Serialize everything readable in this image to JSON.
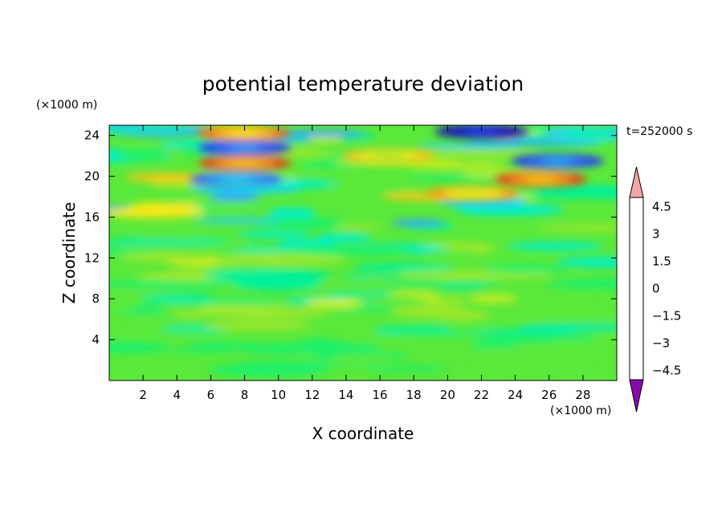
{
  "chart_data": {
    "type": "heatmap",
    "title": "potential temperature deviation",
    "xlabel": "X coordinate",
    "ylabel": "Z coordinate",
    "x_unit": "(×1000 m)",
    "y_unit": "(×1000 m)",
    "time_label": "t=252000 s",
    "xlim": [
      0,
      30
    ],
    "ylim": [
      0,
      25
    ],
    "xticks": [
      2,
      4,
      6,
      8,
      10,
      12,
      14,
      16,
      18,
      20,
      22,
      24,
      26,
      28
    ],
    "yticks": [
      4,
      8,
      12,
      16,
      20,
      24
    ],
    "colorbar": {
      "levels": [
        -5,
        -4.5,
        -4,
        -3.5,
        -3,
        -2.5,
        -2,
        -1.5,
        -1,
        -0.5,
        0,
        0.5,
        1,
        1.5,
        2,
        2.5,
        3,
        3.5,
        4,
        4.5,
        5
      ],
      "tick_labels": [
        "4.5",
        "3",
        "1.5",
        "0",
        "−1.5",
        "−3",
        "−4.5"
      ],
      "tick_values": [
        4.5,
        3,
        1.5,
        0,
        -1.5,
        -3,
        -4.5
      ],
      "colors": [
        "#3b0a8c",
        "#1c0aa8",
        "#1a1ad0",
        "#2a3cf0",
        "#2f6ef8",
        "#2ea4f8",
        "#22d0f0",
        "#00f0c8",
        "#00f09a",
        "#1ef06a",
        "#5ae83a",
        "#9ee82a",
        "#d6ee1e",
        "#f4e818",
        "#fbc414",
        "#fb9a12",
        "#f76a12",
        "#ee3c14",
        "#dc1c12",
        "#c01010"
      ],
      "over_color": "#f4a6a6",
      "under_color": "#8a0aa8"
    },
    "features": [
      {
        "x": 22,
        "z": 24.4,
        "value": -4.5
      },
      {
        "x": 8,
        "z": 22.8,
        "value": -3.5
      },
      {
        "x": 8,
        "z": 21.3,
        "value": 3.5
      },
      {
        "x": 7.5,
        "z": 19.7,
        "value": -3
      },
      {
        "x": 26.5,
        "z": 21.5,
        "value": -3.5
      },
      {
        "x": 25.5,
        "z": 19.7,
        "value": 3.5
      },
      {
        "x": 21.5,
        "z": 18.3,
        "value": 2.5
      },
      {
        "x": 8,
        "z": 24.2,
        "value": 3
      },
      {
        "x": 16.5,
        "z": 22,
        "value": 2
      },
      {
        "x": 28.5,
        "z": 24.2,
        "value": -2
      }
    ]
  }
}
